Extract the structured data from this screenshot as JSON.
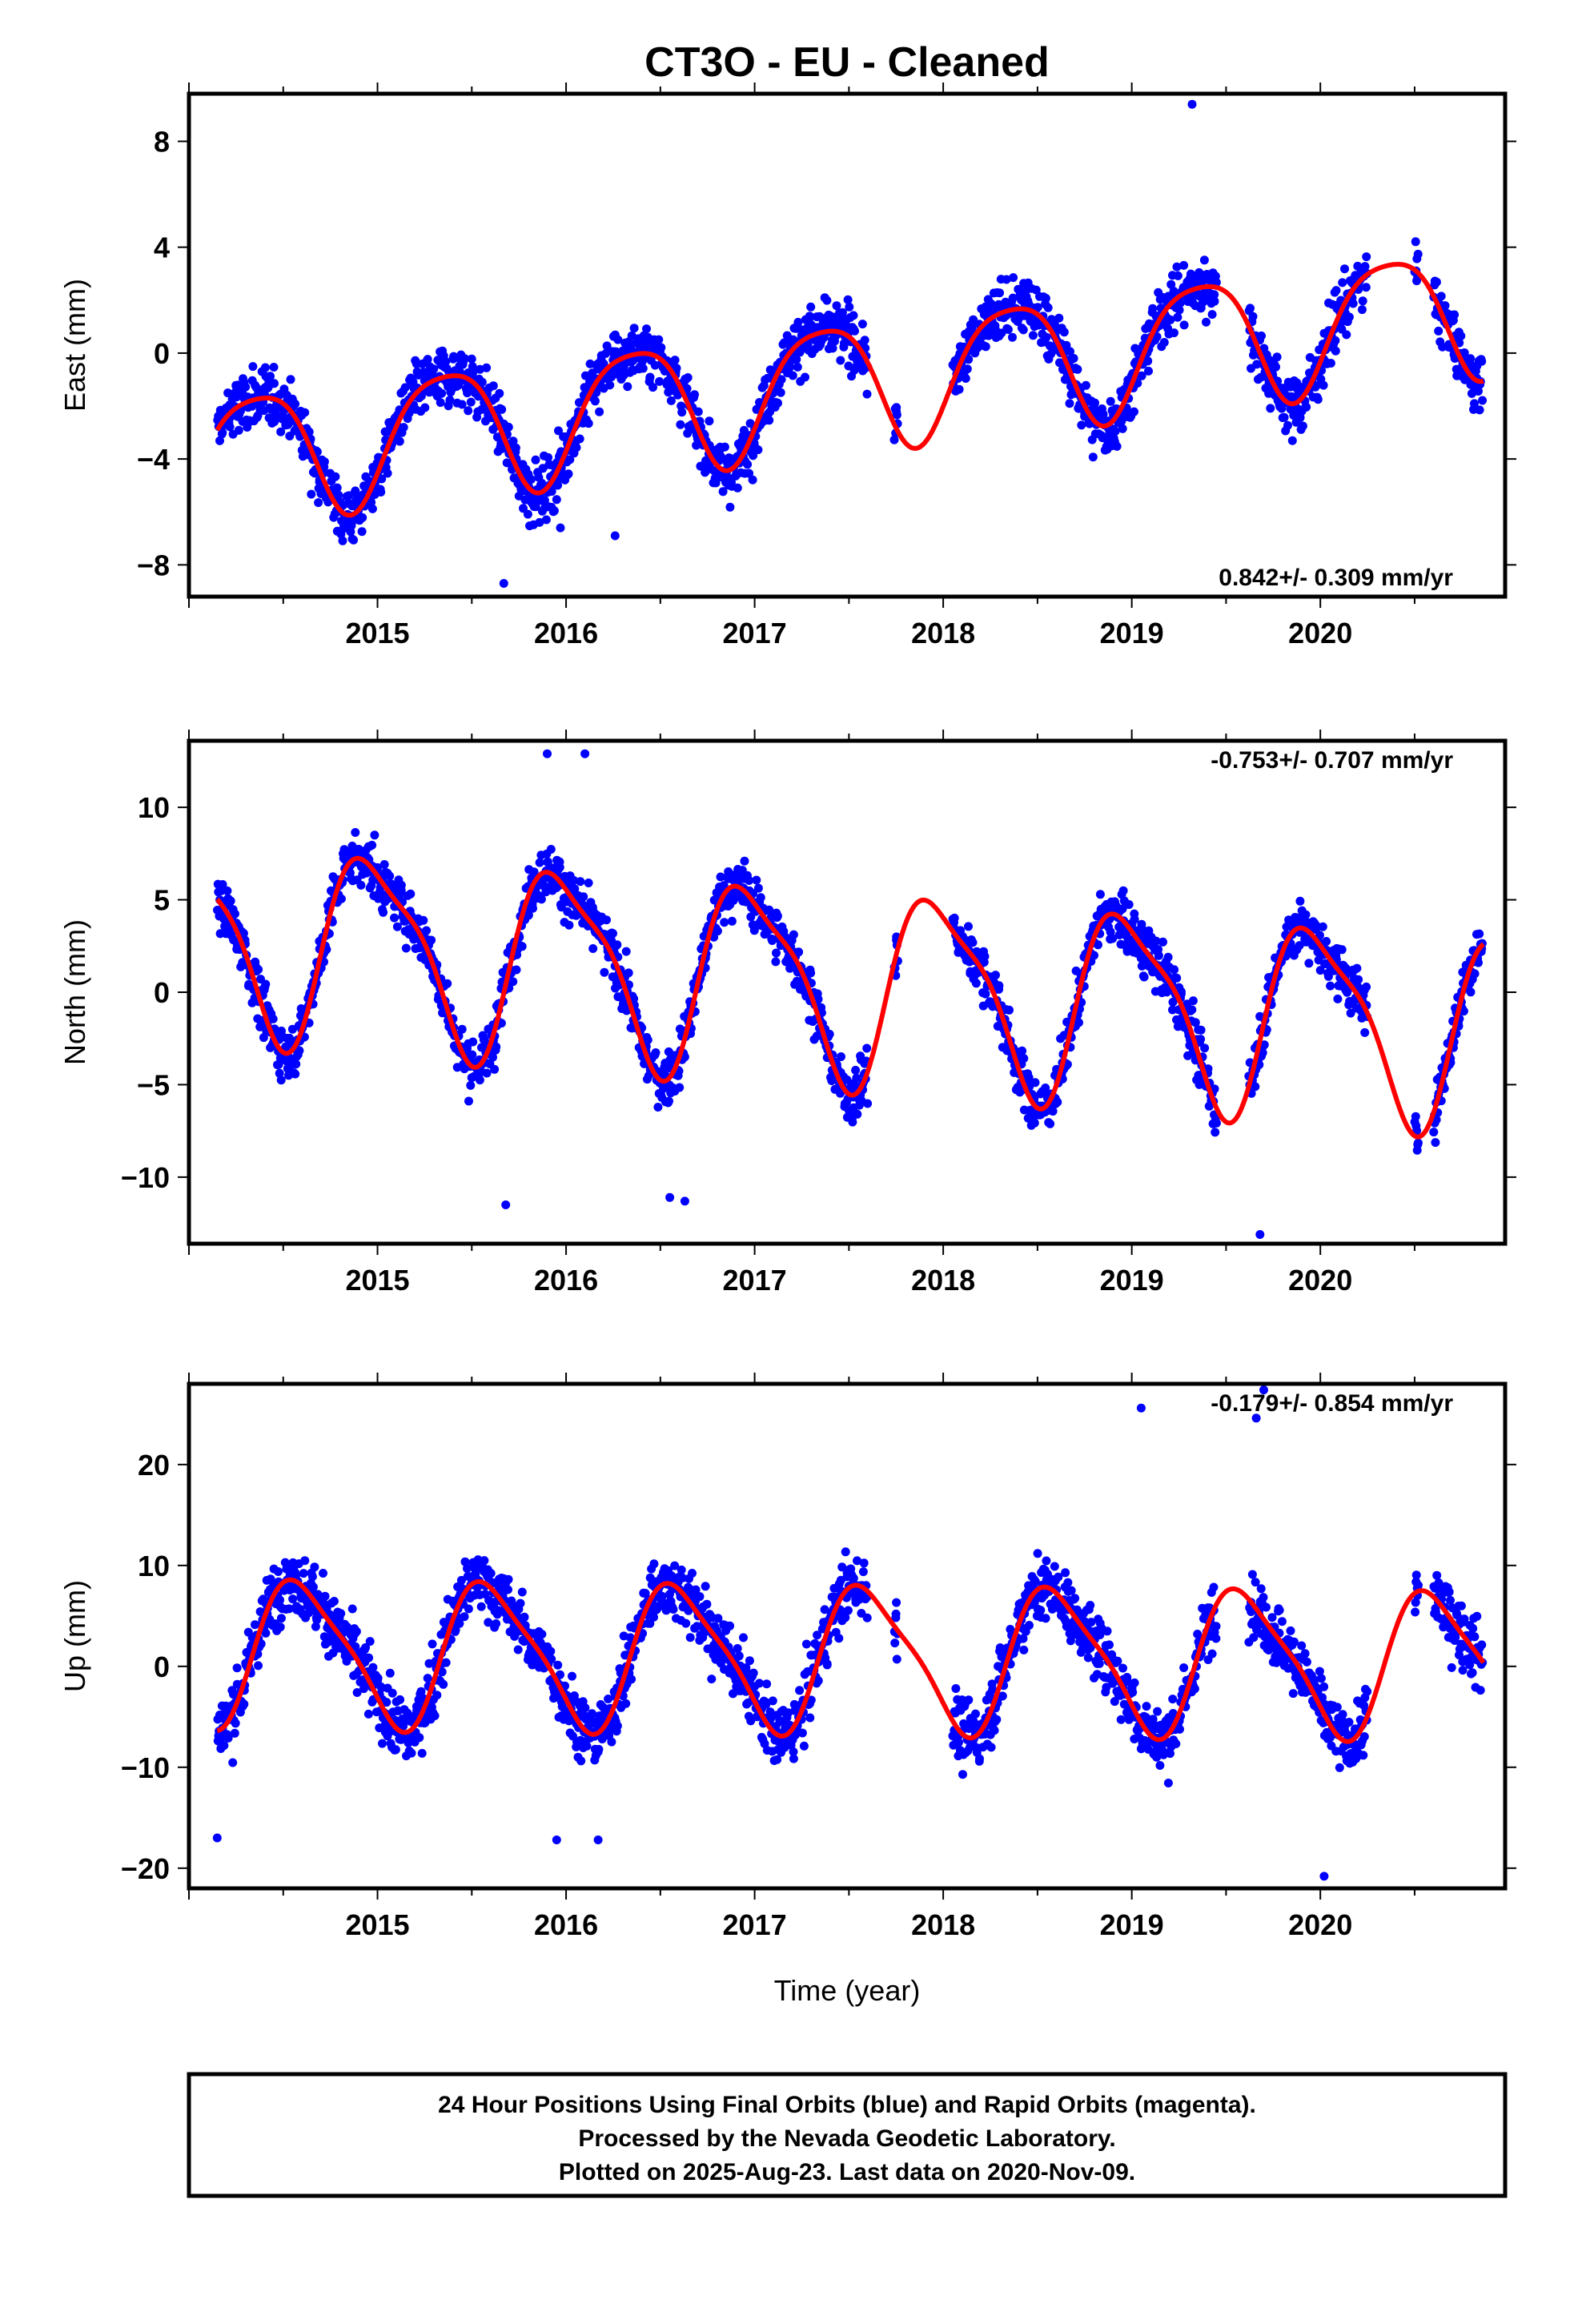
{
  "chart_data": {
    "type": "scatter",
    "title": "CT3O  - EU - Cleaned",
    "x_label": "Time (year)",
    "x_range": [
      2014.0,
      2020.98
    ],
    "x_ticks": [
      2015,
      2016,
      2017,
      2018,
      2019,
      2020
    ],
    "series_legend": {
      "final": "Final Orbits (blue)",
      "rapid": "Rapid Orbits (magenta)",
      "final_color": "#0000ff",
      "rapid_color": "#ff00ff",
      "model_color": "#ff0000"
    },
    "panels": [
      {
        "id": "east",
        "ylabel": "East (mm)",
        "ylim": [
          -9.2,
          9.8
        ],
        "yticks": [
          8,
          4,
          0,
          -4,
          -8
        ],
        "rate": "0.842+/- 0.309 mm/yr",
        "rate_position": "bottom-right",
        "model": {
          "offset": -1.05,
          "trend": 0.842,
          "ann_amp": 2.4,
          "ann_peak": 0.36,
          "semi_amp": 0.45,
          "semi_phase": 0.1
        },
        "noise": 1.4,
        "outliers": [
          [
            2015.67,
            -8.7
          ],
          [
            2015.97,
            -6.6
          ],
          [
            2016.26,
            -6.9
          ],
          [
            2019.32,
            9.4
          ]
        ]
      },
      {
        "id": "north",
        "ylabel": "North (mm)",
        "ylim": [
          -13.6,
          13.6
        ],
        "yticks": [
          10,
          5,
          0,
          -5,
          -10
        ],
        "rate": "-0.753+/- 0.707 mm/yr",
        "rate_position": "top-right",
        "model": {
          "offset": 0.5,
          "trend": -0.753,
          "ann_amp": 5.0,
          "ann_peak": 0.98,
          "semi_amp": 1.3,
          "semi_phase": 0.3
        },
        "noise": 1.8,
        "outliers": [
          [
            2015.68,
            -11.5
          ],
          [
            2016.55,
            -11.1
          ],
          [
            2016.63,
            -11.3
          ],
          [
            2019.68,
            -13.1
          ],
          [
            2015.9,
            12.9
          ],
          [
            2016.1,
            12.9
          ]
        ]
      },
      {
        "id": "up",
        "ylabel": "Up (mm)",
        "ylim": [
          -22,
          28
        ],
        "yticks": [
          20,
          10,
          0,
          -10,
          -20
        ],
        "rate": "-0.179+/- 0.854 mm/yr",
        "rate_position": "top-right",
        "model": {
          "offset": 0.9,
          "trend": -0.179,
          "ann_amp": 7.0,
          "ann_peak": 0.6,
          "semi_amp": 1.5,
          "semi_phase": 0.45
        },
        "noise": 4.0,
        "outliers": [
          [
            2019.05,
            25.6
          ],
          [
            2019.7,
            27.4
          ],
          [
            2019.66,
            24.6
          ],
          [
            2020.02,
            -20.8
          ],
          [
            2014.15,
            -17.0
          ],
          [
            2015.95,
            -17.2
          ],
          [
            2016.17,
            -17.2
          ]
        ]
      }
    ],
    "data_coverage": [
      [
        2014.15,
        2017.6
      ],
      [
        2017.74,
        2017.76
      ],
      [
        2018.05,
        2019.45
      ],
      [
        2019.62,
        2020.25
      ],
      [
        2020.5,
        2020.52
      ],
      [
        2020.6,
        2020.86
      ]
    ]
  },
  "footer": {
    "line1": "24 Hour Positions Using Final Orbits (blue) and Rapid Orbits (magenta).",
    "line2": "Processed by the Nevada Geodetic Laboratory.",
    "line3": "Plotted on 2025-Aug-23. Last data on 2020-Nov-09."
  }
}
